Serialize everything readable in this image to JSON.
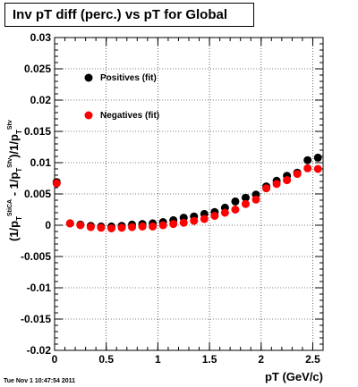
{
  "chart_data": {
    "type": "scatter",
    "title": "Inv pT diff (perc.) vs pT for Global",
    "xlabel": "pT (GeV/c)",
    "ylabel": "(1/pT StiCA - 1/pT Stv)/1/pT Stv",
    "xlim": [
      0,
      2.6
    ],
    "ylim": [
      -0.02,
      0.03
    ],
    "grid": true,
    "legend_position": "top-left",
    "x_ticks": [
      "0",
      "0.5",
      "1",
      "1.5",
      "2",
      "2.5"
    ],
    "y_ticks": [
      "-0.02",
      "-0.015",
      "-0.01",
      "-0.005",
      "0",
      "0.005",
      "0.01",
      "0.015",
      "0.02",
      "0.025",
      "0.03"
    ],
    "series": [
      {
        "name": "Positives (fit)",
        "color": "#000000",
        "x": [
          0.02,
          0.15,
          0.25,
          0.35,
          0.45,
          0.55,
          0.65,
          0.75,
          0.85,
          0.95,
          1.05,
          1.15,
          1.25,
          1.35,
          1.45,
          1.55,
          1.65,
          1.75,
          1.85,
          1.95,
          2.05,
          2.15,
          2.25,
          2.35,
          2.45,
          2.55
        ],
        "y": [
          0.0069,
          0.0003,
          0.0001,
          -0.0001,
          -0.0002,
          -0.0002,
          -0.0001,
          0.0001,
          0.0002,
          0.0003,
          0.0005,
          0.0008,
          0.0012,
          0.0014,
          0.0018,
          0.0021,
          0.0028,
          0.0038,
          0.0044,
          0.0049,
          0.0062,
          0.0071,
          0.0079,
          0.0084,
          0.0104,
          0.0108
        ]
      },
      {
        "name": "Negatives (fit)",
        "color": "#ff0000",
        "x": [
          0.02,
          0.15,
          0.25,
          0.35,
          0.45,
          0.55,
          0.65,
          0.75,
          0.85,
          0.95,
          1.05,
          1.15,
          1.25,
          1.35,
          1.45,
          1.55,
          1.65,
          1.75,
          1.85,
          1.95,
          2.05,
          2.15,
          2.25,
          2.35,
          2.45,
          2.55
        ],
        "y": [
          0.0067,
          0.0003,
          0.0,
          -0.0003,
          -0.0004,
          -0.0005,
          -0.0004,
          -0.0003,
          -0.0002,
          -0.0002,
          0.0,
          0.0002,
          0.0004,
          0.0007,
          0.001,
          0.0015,
          0.002,
          0.0025,
          0.0034,
          0.0041,
          0.0059,
          0.0066,
          0.0072,
          0.0082,
          0.0091,
          0.009
        ]
      }
    ]
  },
  "footer": {
    "timestamp": "Tue Nov  1 10:47:54 2011"
  }
}
